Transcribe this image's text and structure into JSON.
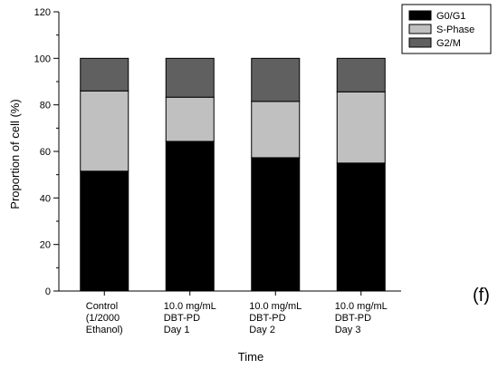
{
  "chart_data": {
    "type": "bar",
    "stacked": true,
    "categories": [
      [
        "Control",
        "(1/2000",
        "Ethanol)"
      ],
      [
        "10.0 mg/mL",
        "DBT-PD",
        "Day 1"
      ],
      [
        "10.0 mg/mL",
        "DBT-PD",
        "Day 2"
      ],
      [
        "10.0 mg/mL",
        "DBT-PD",
        "Day 3"
      ]
    ],
    "series": [
      {
        "name": "G0/G1",
        "color": "#000000",
        "values": [
          51.5,
          64.3,
          57.3,
          55.0
        ]
      },
      {
        "name": "S-Phase",
        "color": "#c0c0c0",
        "values": [
          34.5,
          19.0,
          24.2,
          30.6
        ]
      },
      {
        "name": "G2/M",
        "color": "#606060",
        "values": [
          14.0,
          16.7,
          18.5,
          14.4
        ]
      }
    ],
    "xlabel": "Time",
    "ylabel": "Proportion of cell (%)",
    "ylim": [
      0,
      120
    ],
    "yticks": [
      0,
      20,
      40,
      60,
      80,
      100,
      120
    ],
    "grid": false,
    "legend_position": "top-right",
    "panel_label": "(f)"
  }
}
